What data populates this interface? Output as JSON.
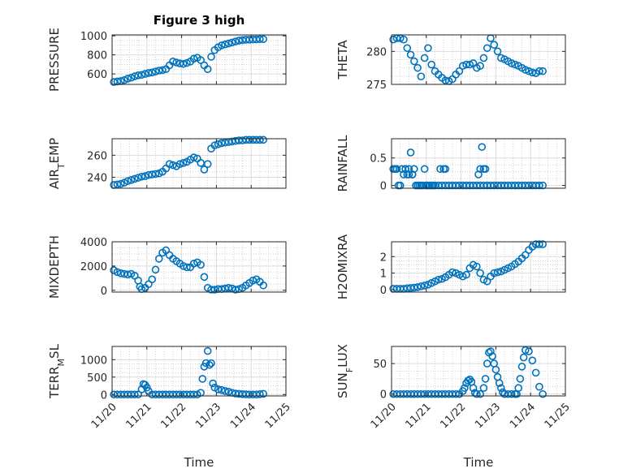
{
  "figure": {
    "title": "Figure 3 high",
    "xlabel": "Time",
    "xticks": [
      "11/20",
      "11/21",
      "11/22",
      "11/23",
      "11/24",
      "11/25"
    ],
    "marker_color": "#0072bd"
  },
  "chart_data": [
    {
      "type": "scatter",
      "id": "pressure",
      "ylabel": "PRESSURE",
      "ylabel_main": "PRESSURE",
      "ylabel_sub": "",
      "ylabel_rest": "",
      "xlim": [
        0,
        5
      ],
      "ylim": [
        490,
        1010
      ],
      "yticks": [
        600,
        800,
        1000
      ],
      "ytick_labels": [
        "600",
        "800",
        "1000"
      ],
      "x": [
        0.05,
        0.15,
        0.25,
        0.35,
        0.45,
        0.55,
        0.65,
        0.75,
        0.85,
        0.95,
        1.05,
        1.15,
        1.25,
        1.35,
        1.45,
        1.55,
        1.65,
        1.75,
        1.85,
        1.95,
        2.05,
        2.15,
        2.25,
        2.35,
        2.45,
        2.55,
        2.65,
        2.75,
        2.85,
        2.95,
        3.05,
        3.15,
        3.25,
        3.35,
        3.45,
        3.55,
        3.65,
        3.75,
        3.85,
        3.95,
        4.05,
        4.15,
        4.25,
        4.35
      ],
      "y": [
        515,
        520,
        525,
        535,
        550,
        560,
        575,
        585,
        590,
        600,
        610,
        615,
        625,
        635,
        640,
        650,
        690,
        730,
        720,
        710,
        705,
        715,
        730,
        760,
        770,
        745,
        690,
        650,
        780,
        850,
        880,
        900,
        910,
        920,
        930,
        940,
        950,
        955,
        960,
        960,
        962,
        963,
        965,
        965
      ]
    },
    {
      "type": "scatter",
      "id": "theta",
      "ylabel": "THETA",
      "ylabel_main": "THETA",
      "ylabel_sub": "",
      "ylabel_rest": "",
      "xlim": [
        0,
        5
      ],
      "ylim": [
        275,
        282.5
      ],
      "yticks": [
        275,
        280
      ],
      "ytick_labels": [
        "275",
        "280"
      ],
      "x": [
        0.05,
        0.15,
        0.25,
        0.35,
        0.45,
        0.55,
        0.65,
        0.75,
        0.85,
        0.95,
        1.05,
        1.15,
        1.25,
        1.35,
        1.45,
        1.55,
        1.65,
        1.75,
        1.85,
        1.95,
        2.05,
        2.15,
        2.25,
        2.35,
        2.45,
        2.55,
        2.65,
        2.75,
        2.85,
        2.95,
        3.05,
        3.15,
        3.25,
        3.35,
        3.45,
        3.55,
        3.65,
        3.75,
        3.85,
        3.95,
        4.05,
        4.15,
        4.25,
        4.35
      ],
      "y": [
        281.8,
        282,
        282,
        281.8,
        280.5,
        279.5,
        278.5,
        277.5,
        276.2,
        279,
        280.5,
        278,
        277,
        276.5,
        276,
        275.6,
        275.5,
        275.8,
        276.5,
        277,
        277.8,
        278,
        278,
        278.2,
        277.5,
        277.8,
        279,
        280.5,
        282,
        281,
        280,
        279,
        278.8,
        278.5,
        278.2,
        278,
        277.8,
        277.5,
        277.2,
        277,
        276.8,
        276.7,
        277,
        277
      ]
    },
    {
      "type": "scatter",
      "id": "air_temp",
      "ylabel": "AIR_TEMP",
      "ylabel_main": "AIR",
      "ylabel_sub": "T",
      "ylabel_rest": "EMP",
      "xlim": [
        0,
        5
      ],
      "ylim": [
        230,
        275
      ],
      "yticks": [
        240,
        260
      ],
      "ytick_labels": [
        "240",
        "260"
      ],
      "x": [
        0.05,
        0.15,
        0.25,
        0.35,
        0.45,
        0.55,
        0.65,
        0.75,
        0.85,
        0.95,
        1.05,
        1.15,
        1.25,
        1.35,
        1.45,
        1.55,
        1.65,
        1.75,
        1.85,
        1.95,
        2.05,
        2.15,
        2.25,
        2.35,
        2.45,
        2.55,
        2.65,
        2.75,
        2.85,
        2.95,
        3.05,
        3.15,
        3.25,
        3.35,
        3.45,
        3.55,
        3.65,
        3.75,
        3.85,
        3.95,
        4.05,
        4.15,
        4.25,
        4.35
      ],
      "y": [
        233,
        233.5,
        234,
        235,
        236.5,
        237.5,
        238.5,
        239.5,
        240.5,
        241,
        242,
        242.5,
        243,
        243.5,
        245,
        248,
        252,
        251,
        250,
        252,
        253,
        254,
        256,
        258,
        257,
        253,
        247,
        252,
        266,
        269,
        270,
        271,
        271.5,
        272,
        272.5,
        273,
        273.5,
        273.5,
        274,
        274,
        274,
        274,
        274,
        274
      ]
    },
    {
      "type": "scatter",
      "id": "rainfall",
      "ylabel": "RAINFALL",
      "ylabel_main": "RAINFALL",
      "ylabel_sub": "",
      "ylabel_rest": "",
      "xlim": [
        0,
        5
      ],
      "ylim": [
        -0.05,
        0.85
      ],
      "yticks": [
        0,
        0.5
      ],
      "ytick_labels": [
        "0",
        "0.5"
      ],
      "x": [
        0.05,
        0.1,
        0.15,
        0.2,
        0.25,
        0.3,
        0.35,
        0.4,
        0.45,
        0.5,
        0.55,
        0.6,
        0.65,
        0.7,
        0.75,
        0.8,
        0.85,
        0.9,
        0.95,
        1.0,
        1.05,
        1.1,
        1.15,
        1.2,
        1.25,
        1.35,
        1.45,
        1.55,
        1.65,
        1.75,
        1.85,
        1.95,
        2.05,
        2.15,
        2.25,
        2.35,
        2.45,
        2.55,
        2.65,
        2.75,
        2.85,
        2.95,
        3.05,
        3.15,
        3.25,
        3.35,
        3.45,
        3.55,
        3.65,
        3.75,
        3.85,
        3.95,
        4.05,
        4.15,
        4.25,
        4.35,
        0.6,
        0.5,
        0.4,
        1.0,
        1.4,
        1.5,
        1.55,
        2.5,
        2.55,
        2.6,
        2.65,
        2.7
      ],
      "y": [
        0.3,
        0.3,
        0.3,
        0,
        0,
        0.3,
        0.2,
        0.3,
        0.2,
        0.3,
        0.6,
        0.2,
        0.3,
        0,
        0,
        0,
        0,
        0,
        0.3,
        0,
        0,
        0,
        0,
        0,
        0,
        0,
        0,
        0,
        0,
        0,
        0,
        0,
        0,
        0,
        0,
        0,
        0,
        0,
        0,
        0,
        0,
        0,
        0,
        0,
        0,
        0,
        0,
        0,
        0,
        0,
        0,
        0,
        0,
        0,
        0,
        0,
        0.2,
        0.2,
        0.3,
        0,
        0.3,
        0.3,
        0.3,
        0.2,
        0.3,
        0.7,
        0.3,
        0.3
      ]
    },
    {
      "type": "scatter",
      "id": "mixdepth",
      "ylabel": "MIXDEPTH",
      "ylabel_main": "MIXDEPTH",
      "ylabel_sub": "",
      "ylabel_rest": "",
      "xlim": [
        0,
        5
      ],
      "ylim": [
        -150,
        4000
      ],
      "yticks": [
        0,
        2000,
        4000
      ],
      "ytick_labels": [
        "0",
        "2000",
        "4000"
      ],
      "x": [
        0.05,
        0.15,
        0.25,
        0.35,
        0.45,
        0.55,
        0.65,
        0.75,
        0.8,
        0.85,
        0.95,
        1.05,
        1.15,
        1.25,
        1.35,
        1.45,
        1.55,
        1.65,
        1.75,
        1.85,
        1.95,
        2.05,
        2.15,
        2.25,
        2.35,
        2.45,
        2.55,
        2.65,
        2.75,
        2.85,
        2.95,
        3.05,
        3.15,
        3.25,
        3.35,
        3.45,
        3.55,
        3.65,
        3.75,
        3.85,
        3.95,
        4.05,
        4.15,
        4.25,
        4.35
      ],
      "y": [
        1650,
        1500,
        1400,
        1350,
        1300,
        1350,
        1200,
        800,
        300,
        100,
        200,
        500,
        900,
        1700,
        2600,
        3100,
        3300,
        2900,
        2600,
        2400,
        2200,
        2000,
        1900,
        1900,
        2200,
        2300,
        2100,
        1100,
        200,
        50,
        50,
        100,
        100,
        150,
        200,
        150,
        50,
        100,
        200,
        400,
        600,
        800,
        900,
        700,
        400
      ]
    },
    {
      "type": "scatter",
      "id": "h2omixra",
      "ylabel": "H2OMIXRA",
      "ylabel_main": "H2OMIXRA",
      "ylabel_sub": "",
      "ylabel_rest": "",
      "xlim": [
        0,
        5
      ],
      "ylim": [
        -0.15,
        2.9
      ],
      "yticks": [
        0,
        1,
        2
      ],
      "ytick_labels": [
        "0",
        "1",
        "2"
      ],
      "x": [
        0.05,
        0.15,
        0.25,
        0.35,
        0.45,
        0.55,
        0.65,
        0.75,
        0.85,
        0.95,
        1.05,
        1.15,
        1.25,
        1.35,
        1.45,
        1.55,
        1.65,
        1.75,
        1.85,
        1.95,
        2.05,
        2.15,
        2.25,
        2.35,
        2.45,
        2.55,
        2.65,
        2.75,
        2.85,
        2.95,
        3.05,
        3.15,
        3.25,
        3.35,
        3.45,
        3.55,
        3.65,
        3.75,
        3.85,
        3.95,
        4.05,
        4.15,
        4.25,
        4.35
      ],
      "y": [
        0.05,
        0.05,
        0.05,
        0.05,
        0.08,
        0.1,
        0.12,
        0.15,
        0.2,
        0.25,
        0.3,
        0.4,
        0.5,
        0.6,
        0.65,
        0.75,
        0.9,
        1.05,
        1.0,
        0.9,
        0.8,
        0.9,
        1.3,
        1.5,
        1.4,
        1.0,
        0.6,
        0.5,
        0.8,
        1.0,
        1.05,
        1.1,
        1.2,
        1.3,
        1.4,
        1.55,
        1.7,
        1.9,
        2.1,
        2.4,
        2.6,
        2.75,
        2.75,
        2.75
      ]
    },
    {
      "type": "scatter",
      "id": "terr_msl",
      "ylabel": "TERR_MSL",
      "ylabel_main": "TERR",
      "ylabel_sub": "M",
      "ylabel_rest": "SL",
      "xlim": [
        0,
        5
      ],
      "ylim": [
        -40,
        1380
      ],
      "yticks": [
        0,
        500,
        1000
      ],
      "ytick_labels": [
        "0",
        "500",
        "1000"
      ],
      "x": [
        0.05,
        0.15,
        0.25,
        0.35,
        0.45,
        0.55,
        0.65,
        0.75,
        0.85,
        0.9,
        0.95,
        1.0,
        1.05,
        1.15,
        1.25,
        1.35,
        1.45,
        1.55,
        1.65,
        1.75,
        1.85,
        1.95,
        2.05,
        2.15,
        2.25,
        2.35,
        2.45,
        2.55,
        2.6,
        2.65,
        2.7,
        2.75,
        2.8,
        2.85,
        2.9,
        2.95,
        3.05,
        3.15,
        3.25,
        3.35,
        3.45,
        3.55,
        3.65,
        3.75,
        3.85,
        3.95,
        4.05,
        4.15,
        4.25,
        4.35
      ],
      "y": [
        0,
        0,
        0,
        0,
        0,
        0,
        0,
        0,
        150,
        300,
        280,
        200,
        100,
        0,
        0,
        0,
        0,
        0,
        0,
        0,
        0,
        0,
        0,
        0,
        0,
        0,
        0,
        50,
        450,
        800,
        900,
        1250,
        850,
        900,
        320,
        200,
        150,
        130,
        100,
        80,
        50,
        30,
        20,
        10,
        5,
        0,
        0,
        0,
        10,
        20
      ]
    },
    {
      "type": "scatter",
      "id": "sun_flux",
      "ylabel": "SUN_FLUX",
      "ylabel_main": "SUN",
      "ylabel_sub": "F",
      "ylabel_rest": "LUX",
      "xlim": [
        0,
        5
      ],
      "ylim": [
        -3,
        78
      ],
      "yticks": [
        0,
        50
      ],
      "ytick_labels": [
        "0",
        "50"
      ],
      "x": [
        0.05,
        0.15,
        0.25,
        0.35,
        0.45,
        0.55,
        0.65,
        0.75,
        0.85,
        0.95,
        1.05,
        1.15,
        1.25,
        1.35,
        1.45,
        1.55,
        1.65,
        1.75,
        1.85,
        1.95,
        2.05,
        2.1,
        2.15,
        2.2,
        2.25,
        2.3,
        2.35,
        2.4,
        2.45,
        2.55,
        2.65,
        2.7,
        2.75,
        2.8,
        2.85,
        2.9,
        2.95,
        3.0,
        3.05,
        3.1,
        3.15,
        3.2,
        3.25,
        3.35,
        3.45,
        3.55,
        3.6,
        3.65,
        3.7,
        3.75,
        3.8,
        3.85,
        3.95,
        4.05,
        4.15,
        4.25,
        4.35
      ],
      "y": [
        0,
        0,
        0,
        0,
        0,
        0,
        0,
        0,
        0,
        0,
        0,
        0,
        0,
        0,
        0,
        0,
        0,
        0,
        0,
        0,
        5,
        10,
        18,
        22,
        24,
        20,
        10,
        2,
        0,
        0,
        10,
        25,
        50,
        68,
        70,
        62,
        50,
        40,
        28,
        18,
        10,
        3,
        0,
        0,
        0,
        0,
        0,
        10,
        25,
        45,
        60,
        72,
        70,
        55,
        35,
        12,
        0
      ]
    }
  ]
}
